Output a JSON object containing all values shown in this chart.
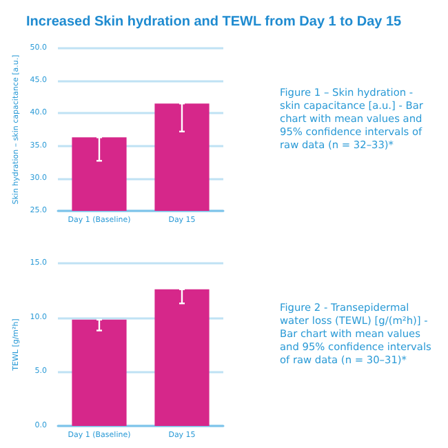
{
  "chart_data": [
    {
      "type": "bar",
      "title": "Increased Skin hydration and TEWL from Day 1 to Day 15",
      "ylabel": "Skin hydration – skin capacitance [a.u.]",
      "categories": [
        "Day 1 (Baseline)",
        "Day 15"
      ],
      "values": [
        36.3,
        41.5
      ],
      "color": "#d6278a",
      "errors": [
        [
          32.7,
          36.3
        ],
        [
          37.2,
          41.5
        ]
      ],
      "ylim": [
        25,
        50
      ],
      "yticks": [
        {
          "value": 25,
          "label": "25.0"
        },
        {
          "value": 30,
          "label": "30.0"
        },
        {
          "value": 35,
          "label": "35.0"
        },
        {
          "value": 40,
          "label": "40.0"
        },
        {
          "value": 45,
          "label": "45.0"
        },
        {
          "value": 50,
          "label": "50.0"
        }
      ],
      "grid": "y",
      "annotations": [
        "Figure 1 – Skin hydration - skin capacitance [a.u.] - Bar chart with mean values and 95% confidence intervals of raw data (n = 32–33)*"
      ]
    },
    {
      "type": "bar",
      "ylabel": "TEWL [g/m²h]",
      "categories": [
        "Day 1 (Baseline)",
        "Day 15"
      ],
      "values": [
        9.8,
        12.6
      ],
      "color": "#d6278a",
      "errors": [
        [
          8.8,
          9.8
        ],
        [
          11.3,
          12.6
        ]
      ],
      "ylim": [
        0,
        15
      ],
      "yticks": [
        {
          "value": 0,
          "label": "0.0"
        },
        {
          "value": 5,
          "label": "5.0"
        },
        {
          "value": 10,
          "label": "10.0"
        },
        {
          "value": 15,
          "label": "15.0"
        }
      ],
      "grid": "y",
      "annotations": [
        "Figure 2 - Transepidermal water loss (TEWL) [g/(m²h)] - Bar chart with mean values and 95% confidence intervals of raw data (n = 30–31)*"
      ]
    }
  ]
}
